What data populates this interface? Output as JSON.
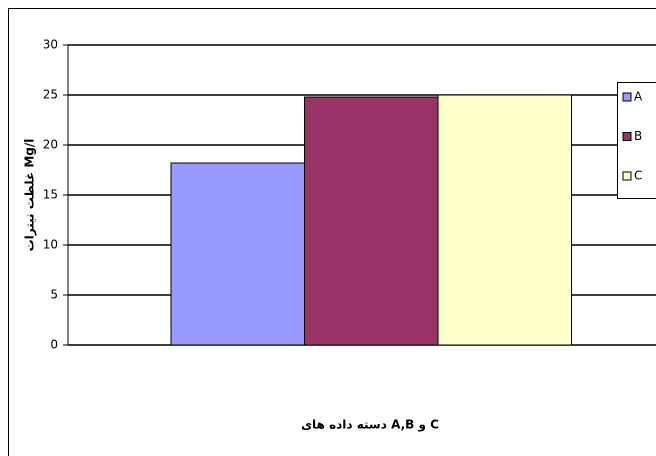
{
  "chart_data": {
    "type": "bar",
    "y_label": "غلظت نیترات Mg/l",
    "x_label": "دسته داده های A,B و C",
    "categories": [
      null
    ],
    "series": [
      {
        "name": "A",
        "color": "#9999ff",
        "values": [
          18.2
        ]
      },
      {
        "name": "B",
        "color": "#993366",
        "values": [
          24.8
        ]
      },
      {
        "name": "C",
        "color": "#ffffcc",
        "values": [
          25
        ]
      }
    ],
    "ylim": [
      0,
      30
    ],
    "yticks": [
      0,
      5,
      10,
      15,
      20,
      25,
      30
    ],
    "grid": true,
    "legend": "right"
  }
}
